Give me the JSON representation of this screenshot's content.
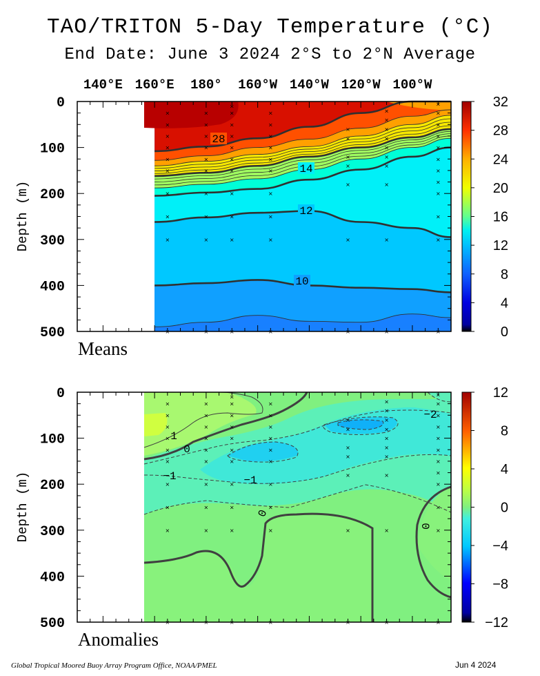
{
  "title": "TAO/TRITON 5-Day Temperature (°C)",
  "subtitle": "End Date: June 3 2024  2°S to 2°N Average",
  "footer": {
    "credit": "Global Tropical Moored Buoy Array Program Office, NOAA/PMEL",
    "date": "Jun  4 2024"
  },
  "longitude_labels": [
    "140°E",
    "160°E",
    "180°",
    "160°W",
    "140°W",
    "120°W",
    "100°W"
  ],
  "chart_data": [
    {
      "type": "heatmap",
      "name": "Means",
      "panel_label": "Means",
      "ylabel": "Depth (m)",
      "yticks": [
        "0",
        "100",
        "200",
        "300",
        "400",
        "500"
      ],
      "ylim": [
        0,
        500
      ],
      "y_inverted": true,
      "x_ticks": [
        "140°E",
        "160°E",
        "180°",
        "160°W",
        "140°W",
        "120°W",
        "100°W"
      ],
      "data_start_longitude": "160°E",
      "colorbar": {
        "ticks": [
          "32",
          "28",
          "24",
          "20",
          "16",
          "12",
          "8",
          "4",
          "0"
        ],
        "range": [
          0,
          32
        ]
      },
      "contour_labels": [
        "28",
        "14",
        "12",
        "10"
      ],
      "isotherm_depths": {
        "x_lon_east": [
          160,
          180,
          200,
          220,
          240,
          260,
          275
        ],
        "t28": [
          108,
          98,
          80,
          55,
          25,
          0,
          0
        ],
        "t26": [
          128,
          118,
          100,
          82,
          58,
          32,
          18
        ],
        "t24": [
          140,
          130,
          115,
          98,
          75,
          50,
          30
        ],
        "t20": [
          162,
          155,
          140,
          120,
          100,
          78,
          60
        ],
        "t16": [
          188,
          180,
          168,
          148,
          125,
          100,
          80
        ],
        "t14": [
          205,
          198,
          190,
          170,
          148,
          120,
          100
        ],
        "t12": [
          262,
          252,
          242,
          238,
          262,
          275,
          295
        ],
        "t10": [
          400,
          395,
          388,
          400,
          405,
          408,
          415
        ],
        "t9": [
          490,
          480,
          465,
          478,
          480,
          462,
          470
        ]
      }
    },
    {
      "type": "heatmap",
      "name": "Anomalies",
      "panel_label": "Anomalies",
      "ylabel": "Depth (m)",
      "yticks": [
        "0",
        "100",
        "200",
        "300",
        "400",
        "500"
      ],
      "ylim": [
        0,
        500
      ],
      "y_inverted": true,
      "colorbar": {
        "ticks": [
          "12",
          "8",
          "4",
          "0",
          "−4",
          "−8",
          "−12"
        ],
        "range": [
          -12,
          12
        ]
      },
      "contour_labels": [
        "1",
        "0",
        "−1",
        "−1",
        "0",
        "0",
        "−2"
      ]
    }
  ]
}
